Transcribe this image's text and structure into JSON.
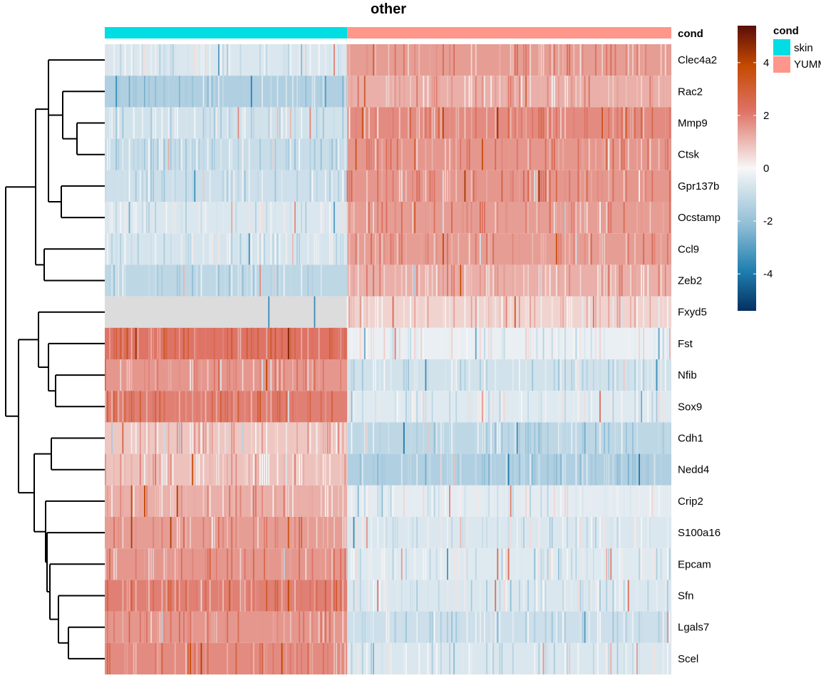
{
  "chart_data": {
    "type": "heatmap",
    "title": "other",
    "annotation": {
      "name": "cond",
      "groups": [
        {
          "name": "skin",
          "color": "#00DDE3",
          "fraction": 0.428
        },
        {
          "name": "YUMM",
          "color": "#FF968B",
          "fraction": 0.572
        }
      ]
    },
    "rows": [
      {
        "gene": "Clec4a2",
        "skin": -0.6,
        "tumor": 1.5
      },
      {
        "gene": "Rac2",
        "skin": -1.5,
        "tumor": 1.2
      },
      {
        "gene": "Mmp9",
        "skin": -0.8,
        "tumor": 1.8
      },
      {
        "gene": "Ctsk",
        "skin": -1.0,
        "tumor": 1.6
      },
      {
        "gene": "Gpr137b",
        "skin": -0.9,
        "tumor": 1.6
      },
      {
        "gene": "Ocstamp",
        "skin": -0.6,
        "tumor": 1.5
      },
      {
        "gene": "Ccl9",
        "skin": -0.7,
        "tumor": 1.5
      },
      {
        "gene": "Zeb2",
        "skin": -1.2,
        "tumor": 1.2
      },
      {
        "gene": "Fxyd5",
        "skin": null,
        "tumor": 0.6
      },
      {
        "gene": "Fst",
        "skin": 2.2,
        "tumor": -0.3
      },
      {
        "gene": "Nfib",
        "skin": 1.6,
        "tumor": -0.8
      },
      {
        "gene": "Sox9",
        "skin": 2.0,
        "tumor": -0.5
      },
      {
        "gene": "Cdh1",
        "skin": 0.8,
        "tumor": -1.2
      },
      {
        "gene": "Nedd4",
        "skin": 0.9,
        "tumor": -1.5
      },
      {
        "gene": "Crip2",
        "skin": 1.2,
        "tumor": -0.4
      },
      {
        "gene": "S100a16",
        "skin": 1.5,
        "tumor": -0.6
      },
      {
        "gene": "Epcam",
        "skin": 1.6,
        "tumor": -0.5
      },
      {
        "gene": "Sfn",
        "skin": 2.0,
        "tumor": -0.6
      },
      {
        "gene": "Lgals7",
        "skin": 1.6,
        "tumor": -0.9
      },
      {
        "gene": "Scel",
        "skin": 1.8,
        "tumor": -0.6
      }
    ],
    "colorbar": {
      "ticks": [
        4,
        2,
        0,
        -2,
        -4
      ],
      "range": [
        -5.4,
        5.4
      ],
      "low_color": "#053061",
      "mid_color": "#F7F7F7",
      "high_color": "#67001F",
      "na_color": "#DCDCDC"
    },
    "dendrogram": "rows"
  },
  "legend": {
    "title": "cond",
    "items": [
      {
        "label": "skin",
        "color": "#00DDE3"
      },
      {
        "label": "YUMM",
        "color": "#FF968B"
      }
    ]
  },
  "anno_label": "cond"
}
